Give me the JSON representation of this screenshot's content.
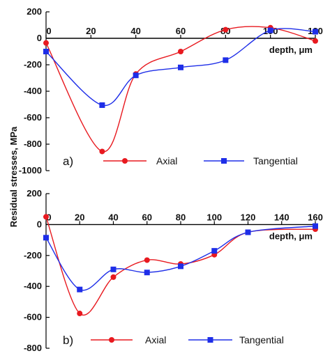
{
  "figure": {
    "ylabel": "Residual stresses, MPa"
  },
  "chart_data": [
    {
      "type": "line",
      "panel_label": "a)",
      "xlabel": "depth, μm",
      "ylabel": "Residual stresses, MPa",
      "xlim": [
        0,
        120
      ],
      "ylim": [
        -1000,
        200
      ],
      "xticks": [
        0,
        20,
        40,
        60,
        80,
        100,
        120
      ],
      "yticks": [
        200,
        0,
        -200,
        -400,
        -600,
        -800,
        -1000
      ],
      "x_axis_at_y": 0,
      "grid": false,
      "legend_position": "bottom",
      "series": [
        {
          "name": "Axial",
          "color": "#e8191f",
          "marker": "circle",
          "x": [
            0,
            25,
            40,
            60,
            80,
            100,
            120
          ],
          "y": [
            -35,
            -855,
            -270,
            -100,
            65,
            80,
            -20
          ]
        },
        {
          "name": "Tangential",
          "color": "#1e2ee8",
          "marker": "square",
          "x": [
            0,
            25,
            40,
            60,
            80,
            100,
            120
          ],
          "y": [
            -100,
            -505,
            -280,
            -220,
            -165,
            60,
            50
          ]
        }
      ]
    },
    {
      "type": "line",
      "panel_label": "b)",
      "xlabel": "depth, μm",
      "ylabel": "Residual stresses, MPa",
      "xlim": [
        0,
        160
      ],
      "ylim": [
        -800,
        200
      ],
      "xticks": [
        0,
        20,
        40,
        60,
        80,
        100,
        120,
        140,
        160
      ],
      "yticks": [
        200,
        0,
        -200,
        -400,
        -600,
        -800
      ],
      "x_axis_at_y": 0,
      "grid": false,
      "legend_position": "bottom",
      "series": [
        {
          "name": "Axial",
          "color": "#e8191f",
          "marker": "circle",
          "x": [
            0,
            20,
            40,
            60,
            80,
            100,
            120,
            160
          ],
          "y": [
            50,
            -575,
            -340,
            -230,
            -255,
            -195,
            -50,
            -30
          ]
        },
        {
          "name": "Tangential",
          "color": "#1e2ee8",
          "marker": "square",
          "x": [
            0,
            20,
            40,
            60,
            80,
            100,
            120,
            160
          ],
          "y": [
            -85,
            -420,
            -290,
            -310,
            -270,
            -170,
            -50,
            -10
          ]
        }
      ]
    }
  ]
}
